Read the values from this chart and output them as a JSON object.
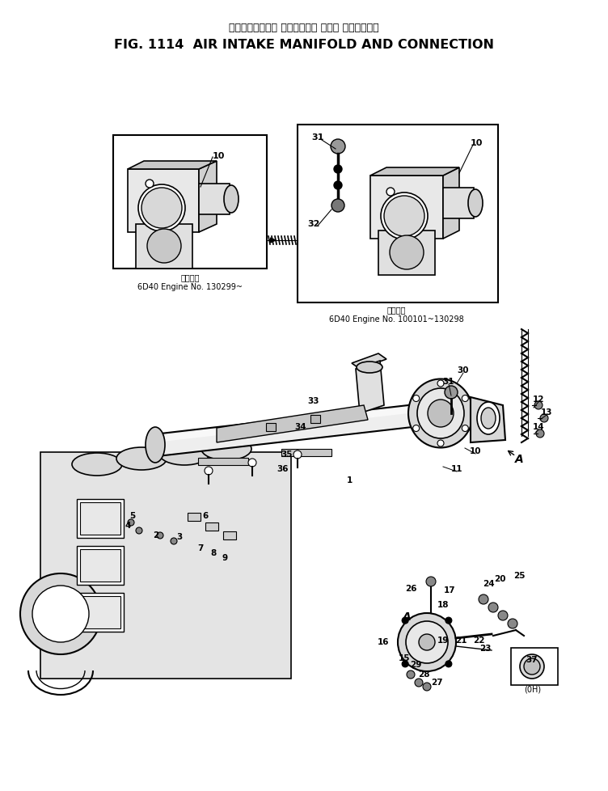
{
  "title_jp": "エアーインテーク マニホールド および コネクション",
  "title_en": "FIG. 1114  AIR INTAKE MANIFOLD AND CONNECTION",
  "bg_color": "#ffffff",
  "caption_left_jp": "適用号艦",
  "caption_left_en": "6D40 Engine No. 130299~",
  "caption_right_jp": "適用号艦",
  "caption_right_en": "6D40 Engine No. 100101~130298",
  "caption_bottom_right": "(0H)"
}
